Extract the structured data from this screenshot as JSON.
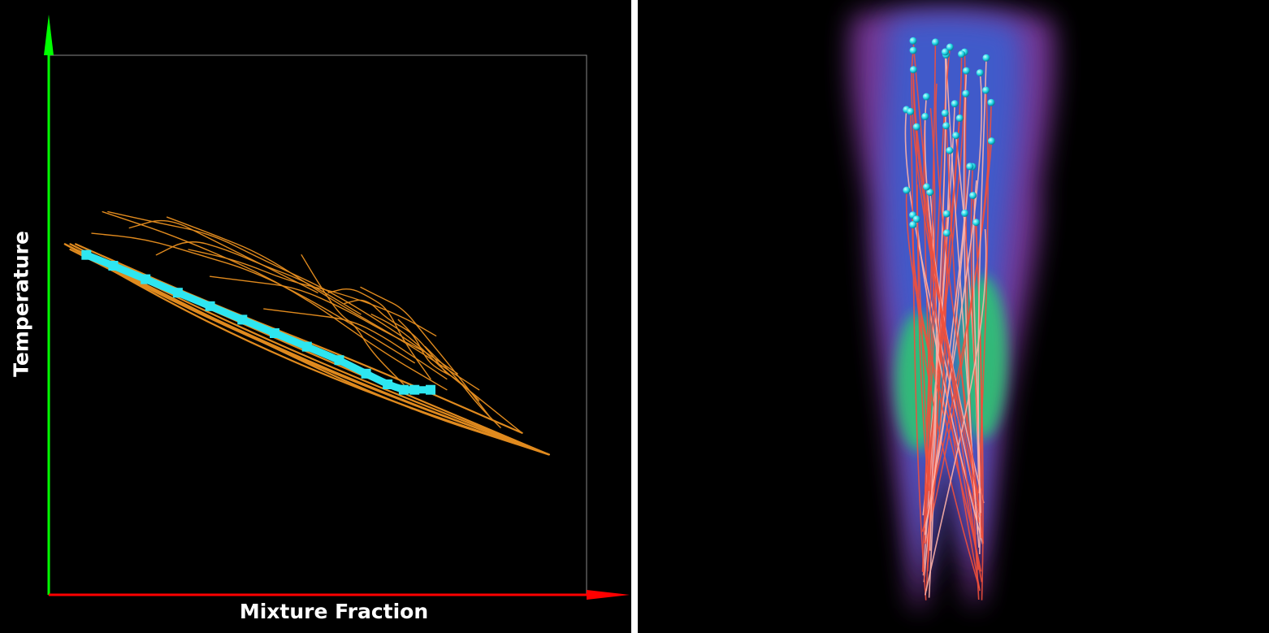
{
  "figure": {
    "background": "#000000",
    "separator_color": "#ffffff"
  },
  "chart_data": {
    "type": "line",
    "title": "",
    "xlabel": "Mixture Fraction",
    "ylabel": "Temperature",
    "x_axis_color": "#ff0000",
    "y_axis_color": "#00ff00",
    "frame_color": "#888888",
    "xlim": [
      0,
      1
    ],
    "ylim": [
      0,
      1
    ],
    "grid": false,
    "legend": "none",
    "series": [
      {
        "color": "#e08a1e",
        "style": "pathline bundle",
        "lines": [
          {
            "x": [
              0.03,
              0.3,
              0.6,
              0.93
            ],
            "y": [
              0.65,
              0.5,
              0.37,
              0.26
            ]
          },
          {
            "x": [
              0.04,
              0.3,
              0.6,
              0.93
            ],
            "y": [
              0.64,
              0.51,
              0.38,
              0.26
            ]
          },
          {
            "x": [
              0.05,
              0.32,
              0.62,
              0.93
            ],
            "y": [
              0.64,
              0.52,
              0.39,
              0.26
            ]
          },
          {
            "x": [
              0.04,
              0.28,
              0.55,
              0.93
            ],
            "y": [
              0.65,
              0.53,
              0.41,
              0.26
            ]
          },
          {
            "x": [
              0.06,
              0.33,
              0.63,
              0.93
            ],
            "y": [
              0.63,
              0.5,
              0.37,
              0.26
            ]
          },
          {
            "x": [
              0.03,
              0.35,
              0.65,
              0.93
            ],
            "y": [
              0.65,
              0.49,
              0.35,
              0.26
            ]
          },
          {
            "x": [
              0.05,
              0.3,
              0.58,
              0.88
            ],
            "y": [
              0.65,
              0.54,
              0.43,
              0.3
            ]
          },
          {
            "x": [
              0.1,
              0.25,
              0.45,
              0.62,
              0.74
            ],
            "y": [
              0.71,
              0.66,
              0.57,
              0.45,
              0.38
            ]
          },
          {
            "x": [
              0.11,
              0.2,
              0.3,
              0.4,
              0.55,
              0.76
            ],
            "y": [
              0.71,
              0.69,
              0.67,
              0.62,
              0.55,
              0.41
            ]
          },
          {
            "x": [
              0.08,
              0.18,
              0.28,
              0.38,
              0.5,
              0.68
            ],
            "y": [
              0.67,
              0.66,
              0.63,
              0.6,
              0.54,
              0.43
            ]
          },
          {
            "x": [
              0.22,
              0.3,
              0.4,
              0.52,
              0.66,
              0.8
            ],
            "y": [
              0.7,
              0.67,
              0.63,
              0.55,
              0.47,
              0.38
            ]
          },
          {
            "x": [
              0.26,
              0.35,
              0.45,
              0.54,
              0.65,
              0.72
            ],
            "y": [
              0.64,
              0.62,
              0.58,
              0.56,
              0.52,
              0.48
            ]
          },
          {
            "x": [
              0.3,
              0.38,
              0.46,
              0.55,
              0.62,
              0.7
            ],
            "y": [
              0.59,
              0.58,
              0.57,
              0.53,
              0.49,
              0.45
            ]
          },
          {
            "x": [
              0.47,
              0.5,
              0.54,
              0.57,
              0.6,
              0.66
            ],
            "y": [
              0.63,
              0.58,
              0.52,
              0.5,
              0.45,
              0.39
            ]
          },
          {
            "x": [
              0.52,
              0.56,
              0.6,
              0.63,
              0.66,
              0.71
            ],
            "y": [
              0.56,
              0.57,
              0.55,
              0.53,
              0.47,
              0.4
            ]
          },
          {
            "x": [
              0.58,
              0.62,
              0.66,
              0.7,
              0.75,
              0.82
            ],
            "y": [
              0.57,
              0.55,
              0.53,
              0.48,
              0.42,
              0.33
            ]
          },
          {
            "x": [
              0.6,
              0.64,
              0.68,
              0.73,
              0.78,
              0.88
            ],
            "y": [
              0.52,
              0.5,
              0.47,
              0.42,
              0.38,
              0.3
            ]
          },
          {
            "x": [
              0.4,
              0.48,
              0.56,
              0.62,
              0.68,
              0.74
            ],
            "y": [
              0.53,
              0.52,
              0.51,
              0.48,
              0.44,
              0.4
            ]
          },
          {
            "x": [
              0.55,
              0.59,
              0.63,
              0.67,
              0.7,
              0.74
            ],
            "y": [
              0.54,
              0.55,
              0.51,
              0.49,
              0.46,
              0.41
            ]
          },
          {
            "x": [
              0.65,
              0.68,
              0.7,
              0.72,
              0.76,
              0.8
            ],
            "y": [
              0.51,
              0.48,
              0.44,
              0.42,
              0.4,
              0.36
            ]
          },
          {
            "x": [
              0.7,
              0.73,
              0.76,
              0.8,
              0.84
            ],
            "y": [
              0.46,
              0.43,
              0.4,
              0.35,
              0.31
            ]
          },
          {
            "x": [
              0.15,
              0.22,
              0.3,
              0.36,
              0.42,
              0.5
            ],
            "y": [
              0.68,
              0.7,
              0.66,
              0.63,
              0.6,
              0.56
            ]
          },
          {
            "x": [
              0.2,
              0.26,
              0.33,
              0.4,
              0.48,
              0.58
            ],
            "y": [
              0.63,
              0.66,
              0.64,
              0.61,
              0.58,
              0.52
            ]
          }
        ]
      },
      {
        "color": "#2ee6f0",
        "style": "marker line",
        "x": [
          0.07,
          0.12,
          0.18,
          0.24,
          0.3,
          0.36,
          0.42,
          0.48,
          0.54,
          0.59,
          0.63,
          0.66,
          0.68,
          0.71
        ],
        "y": [
          0.63,
          0.61,
          0.585,
          0.56,
          0.535,
          0.51,
          0.485,
          0.46,
          0.435,
          0.41,
          0.39,
          0.38,
          0.38,
          0.38
        ]
      }
    ]
  },
  "render": {
    "background": "#000000",
    "type": "volume rendering with pathlines"
  }
}
